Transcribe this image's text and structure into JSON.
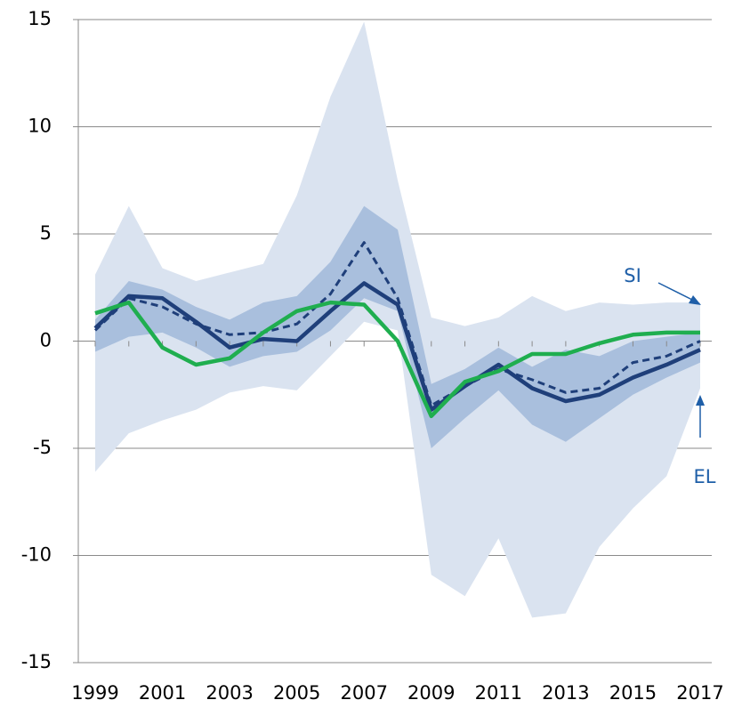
{
  "chart_data": {
    "type": "line",
    "categories": [
      "1999",
      null,
      "2001",
      null,
      "2003",
      null,
      "2005",
      null,
      "2007",
      null,
      "2009",
      null,
      "2011",
      null,
      "2013",
      null,
      "2015",
      null,
      "2017"
    ],
    "ylim": [
      -15,
      15
    ],
    "yticks": [
      -15,
      -10,
      -5,
      0,
      5,
      10,
      15
    ],
    "grid": true,
    "bands": [
      {
        "color": "#dae3f0",
        "upper": [
          3.1,
          6.3,
          3.4,
          2.8,
          3.2,
          3.6,
          6.8,
          11.4,
          14.9,
          7.5,
          1.1,
          0.7,
          1.1,
          2.1,
          1.4,
          1.8,
          1.7,
          1.8,
          1.8
        ],
        "lower": [
          -6.1,
          -4.3,
          -3.7,
          -3.2,
          -2.4,
          -2.1,
          -2.3,
          -0.7,
          0.9,
          0.5,
          -10.9,
          -11.9,
          -9.2,
          -12.9,
          -12.7,
          -9.6,
          -7.8,
          -6.3,
          -2.2
        ]
      },
      {
        "color": "#a9bfdd",
        "upper": [
          1.0,
          2.8,
          2.4,
          1.6,
          1.0,
          1.8,
          2.1,
          3.7,
          6.3,
          5.2,
          -2.0,
          -1.3,
          -0.3,
          -1.2,
          -0.4,
          -0.7,
          0.0,
          0.2,
          0.4
        ],
        "lower": [
          -0.5,
          0.2,
          0.4,
          -0.3,
          -1.2,
          -0.7,
          -0.5,
          0.5,
          2.0,
          1.4,
          -5.0,
          -3.6,
          -2.3,
          -3.9,
          -4.7,
          -3.6,
          -2.5,
          -1.7,
          -1.0
        ]
      }
    ],
    "series": [
      {
        "color": "#1f3f7a",
        "dashed": false,
        "values": [
          0.6,
          2.1,
          2.0,
          0.9,
          -0.3,
          0.1,
          0.0,
          1.4,
          2.7,
          1.7,
          -3.2,
          -2.1,
          -1.1,
          -2.2,
          -2.8,
          -2.5,
          -1.7,
          -1.1,
          -0.4
        ]
      },
      {
        "color": "#1f3f7a",
        "dashed": true,
        "values": [
          0.5,
          2.0,
          1.6,
          0.8,
          0.3,
          0.4,
          0.8,
          2.2,
          4.6,
          2.0,
          -3.0,
          -2.1,
          -1.3,
          -1.8,
          -2.4,
          -2.2,
          -1.0,
          -0.7,
          0.0
        ]
      },
      {
        "color": "#1fae4f",
        "dashed": false,
        "values": [
          1.3,
          1.8,
          -0.3,
          -1.1,
          -0.8,
          0.4,
          1.4,
          1.8,
          1.7,
          0.0,
          -3.5,
          -1.9,
          -1.4,
          -0.6,
          -0.6,
          -0.1,
          0.3,
          0.4,
          0.4
        ]
      }
    ],
    "annotations": [
      "SI",
      "EL"
    ]
  }
}
